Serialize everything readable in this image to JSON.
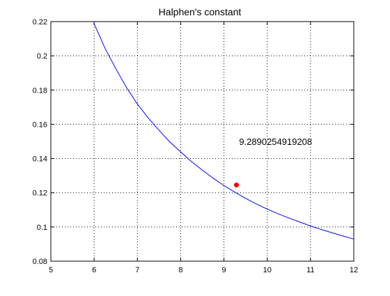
{
  "chart_data": {
    "type": "line",
    "title": "Halphen's constant",
    "xlabel": "",
    "ylabel": "",
    "xlim": [
      5,
      12
    ],
    "ylim": [
      0.08,
      0.22
    ],
    "xticks": [
      5,
      6,
      7,
      8,
      9,
      10,
      11,
      12
    ],
    "yticks": [
      0.08,
      0.1,
      0.12,
      0.14,
      0.16,
      0.18,
      0.2,
      0.22
    ],
    "xtick_labels": [
      "5",
      "6",
      "7",
      "8",
      "9",
      "10",
      "11",
      "12"
    ],
    "ytick_labels": [
      "0.08",
      "0.1",
      "0.12",
      "0.14",
      "0.16",
      "0.18",
      "0.2",
      "0.22"
    ],
    "grid": true,
    "series": [
      {
        "color": "#0000ff",
        "x": [
          5.99,
          6.25,
          6.5,
          6.75,
          7.0,
          7.25,
          7.5,
          7.75,
          8.0,
          8.25,
          8.5,
          8.75,
          9.0,
          9.25,
          9.5,
          9.75,
          10.0,
          10.25,
          10.5,
          10.75,
          11.0,
          11.25,
          11.5,
          11.75,
          12.0
        ],
        "y": [
          0.2193,
          0.2045,
          0.1925,
          0.1814,
          0.1718,
          0.1637,
          0.1565,
          0.1497,
          0.1438,
          0.1382,
          0.1332,
          0.1285,
          0.1242,
          0.1203,
          0.1167,
          0.1134,
          0.1104,
          0.1077,
          0.1052,
          0.1029,
          0.1006,
          0.0985,
          0.0966,
          0.0947,
          0.0929
        ]
      }
    ],
    "highlight_point": {
      "x": 9.289,
      "y": 0.1245,
      "color": "#ff0000"
    },
    "annotation": {
      "text": "9.2890254919208",
      "x": 9.35,
      "y": 0.148
    }
  }
}
